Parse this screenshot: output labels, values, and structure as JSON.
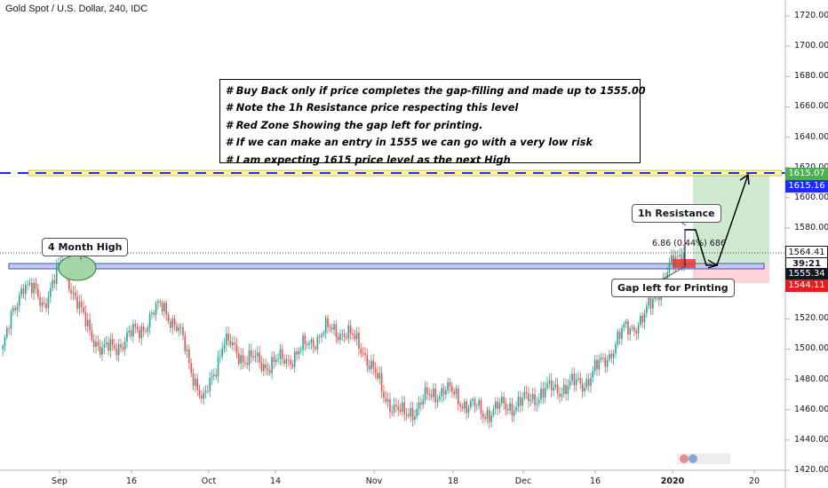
{
  "header": {
    "title": "Gold Spot / U.S. Dollar, 240, IDC"
  },
  "notes": [
    "# Buy Back only if price completes the gap-filling and made up to 1555.00",
    "# Note the 1h Resistance price respecting this level",
    "# Red Zone Showing the gap left for printing.",
    "# If we can make an entry in 1555 we can go with a very low risk",
    "# I am expecting 1615 price level as the next High"
  ],
  "callouts": {
    "four_month_high": "4 Month High",
    "resistance_1h": "1h Resistance",
    "gap_printing": "Gap left for Printing"
  },
  "measure_label": "6.86 (0.44%) 686",
  "price_tags": {
    "target": "1615.07",
    "line_level": "1615.16",
    "last_price": "1564.41",
    "countdown": "39:21",
    "entry": "1555.34",
    "stop": "1544.11"
  },
  "colors": {
    "up_candle": "#26a69a",
    "down_candle": "#ef5350",
    "target_tag": "#4caf50",
    "line_tag": "#1e2bff",
    "stop_tag": "#e02020",
    "entry_tag": "#131722",
    "last_tag": "#ffffff"
  },
  "chart_data": {
    "type": "candlestick",
    "symbol": "Gold Spot / U.S. Dollar",
    "interval": "240",
    "source": "IDC",
    "y_axis": {
      "min": 1420,
      "max": 1720,
      "ticks": [
        "1720.00",
        "1700.00",
        "1680.00",
        "1660.00",
        "1640.00",
        "1620.00",
        "1600.00",
        "1580.00",
        "1560.00",
        "1540.00",
        "1520.00",
        "1500.00",
        "1480.00",
        "1460.00",
        "1440.00",
        "1420.00"
      ]
    },
    "x_axis": {
      "ticks": [
        "Sep",
        "16",
        "Oct",
        "14",
        "Nov",
        "18",
        "Dec",
        "16",
        "2020",
        "20"
      ]
    },
    "levels": [
      {
        "name": "support-zone",
        "low": 1555,
        "high": 1558
      },
      {
        "name": "target-line",
        "value": 1615.16
      }
    ],
    "approx_path": [
      [
        "Aug 22",
        1500
      ],
      [
        "Aug 26",
        1545
      ],
      [
        "Aug 30",
        1530
      ],
      [
        "Sep 4",
        1557
      ],
      [
        "Sep 6",
        1520
      ],
      [
        "Sep 10",
        1498
      ],
      [
        "Sep 16",
        1505
      ],
      [
        "Sep 20",
        1515
      ],
      [
        "Sep 24",
        1530
      ],
      [
        "Sep 26",
        1505
      ],
      [
        "Oct 1",
        1463
      ],
      [
        "Oct 4",
        1505
      ],
      [
        "Oct 8",
        1495
      ],
      [
        "Oct 14",
        1490
      ],
      [
        "Oct 18",
        1492
      ],
      [
        "Oct 24",
        1500
      ],
      [
        "Oct 28",
        1512
      ],
      [
        "Nov 1",
        1512
      ],
      [
        "Nov 4",
        1500
      ],
      [
        "Nov 7",
        1470
      ],
      [
        "Nov 12",
        1455
      ],
      [
        "Nov 16",
        1466
      ],
      [
        "Nov 20",
        1474
      ],
      [
        "Nov 25",
        1465
      ],
      [
        "Nov 28",
        1458
      ],
      [
        "Dec 2",
        1462
      ],
      [
        "Dec 5",
        1465
      ],
      [
        "Dec 10",
        1472
      ],
      [
        "Dec 13",
        1475
      ],
      [
        "Dec 18",
        1478
      ],
      [
        "Dec 23",
        1492
      ],
      [
        "Dec 27",
        1512
      ],
      [
        "Dec 31",
        1520
      ],
      [
        "Jan 3",
        1547
      ],
      [
        "Jan 6",
        1566
      ]
    ]
  }
}
